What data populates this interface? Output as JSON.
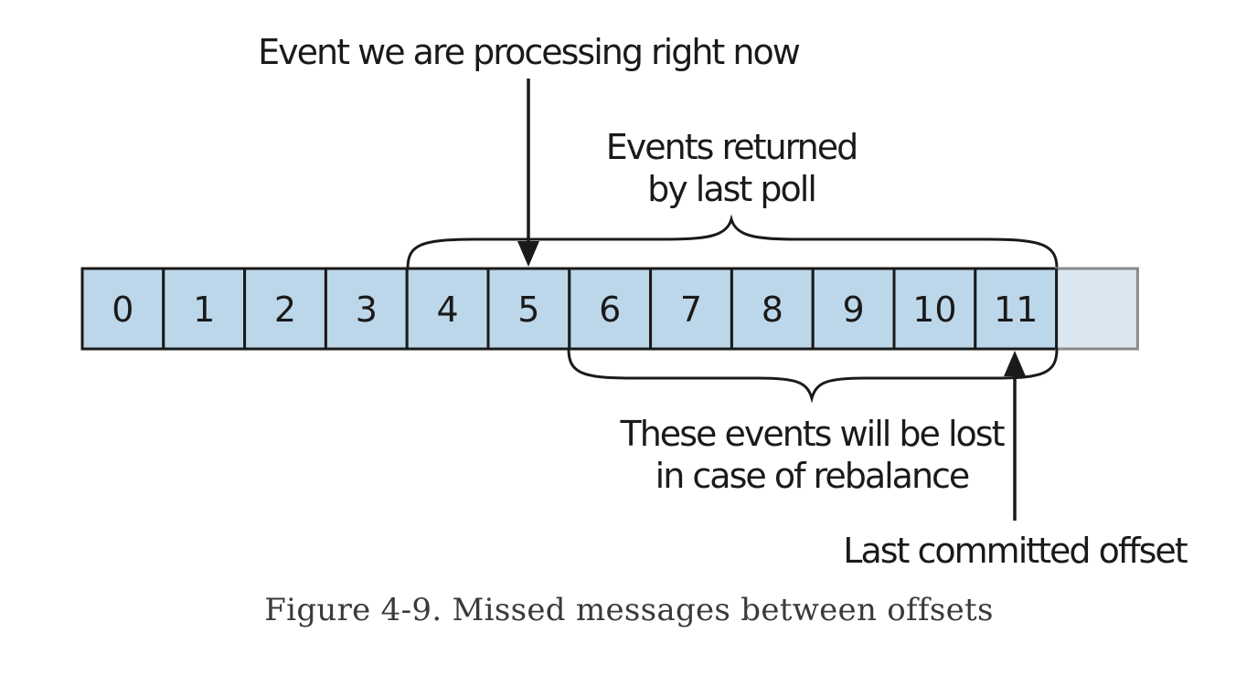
{
  "offsets": [
    "0",
    "1",
    "2",
    "3",
    "4",
    "5",
    "6",
    "7",
    "8",
    "9",
    "10",
    "11",
    ""
  ],
  "annotations": {
    "processing": "Event we are processing right now",
    "returned_line1": "Events returned",
    "returned_line2": "by last poll",
    "lost_line1": "These events will be lost",
    "lost_line2": "in case of rebalance",
    "committed": "Last committed offset"
  },
  "caption": "Figure 4-9. Missed messages between offsets",
  "colors": {
    "cell_fill": "#bdd7ea",
    "empty_cell_fill": "#dae6f0",
    "stroke": "#1a1a1a"
  }
}
